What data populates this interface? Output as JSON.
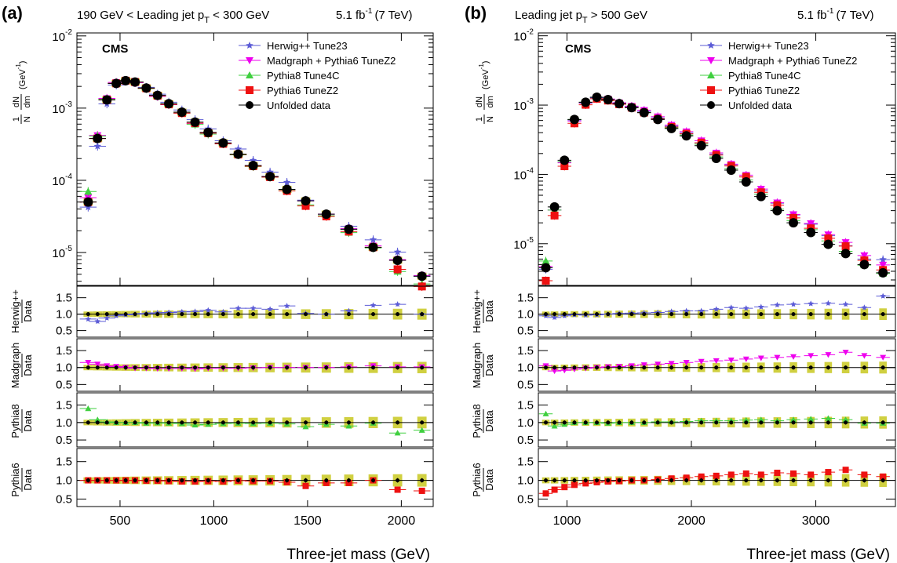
{
  "colors": {
    "herwig": "#5b5bd6",
    "madgraph": "#ee00ee",
    "pythia8": "#3fcf3f",
    "pythia6": "#ee1111",
    "data": "#000000",
    "band": "#c8c820"
  },
  "series_styles": [
    {
      "key": "herwig",
      "marker": "star"
    },
    {
      "key": "madgraph",
      "marker": "tri-down"
    },
    {
      "key": "pythia8",
      "marker": "tri-up"
    },
    {
      "key": "pythia6",
      "marker": "square"
    },
    {
      "key": "data",
      "marker": "circle"
    }
  ],
  "legend_labels": [
    "Herwig++ Tune23",
    "Madgraph + Pythia6 TuneZ2",
    "Pythia8 Tune4C",
    "Pythia6 TuneZ2",
    "Unfolded data"
  ],
  "cms_label": "CMS",
  "lumi_prefix": "5.1 fb",
  "lumi_exp": "-1",
  "lumi_energy": "(7 TeV)",
  "ylabel": {
    "num": "1",
    "den": "N",
    "dnum": "dN",
    "dden": "dm",
    "unit": "(GeV",
    "unitexp": "-1",
    "close": ")"
  },
  "ratio_labels": [
    {
      "top": "Herwig++",
      "bottom": "Data"
    },
    {
      "top": "Madgraph",
      "bottom": "Data"
    },
    {
      "top": "Pythia8",
      "bottom": "Data"
    },
    {
      "top": "Pythia6",
      "bottom": "Data"
    }
  ],
  "ratio_ticks": [
    "1.5",
    "1.0",
    "0.5"
  ],
  "xlabel": "Three-jet mass (GeV)",
  "chart_data": [
    {
      "type": "scatter",
      "panel": "(a)",
      "header": {
        "pre": "190 GeV < Leading jet p",
        "sub": "T",
        "post": " < 300 GeV"
      },
      "log_y": true,
      "xlim": [
        270,
        2170
      ],
      "ylim": [
        3.5e-06,
        0.011
      ],
      "x_ticks": [
        500,
        1000,
        1500,
        2000
      ],
      "y_ticks": [
        {
          "base": "10",
          "exp": "-2",
          "v": 0.01
        },
        {
          "base": "10",
          "exp": "-3",
          "v": 0.001
        },
        {
          "base": "10",
          "exp": "-4",
          "v": 0.0001
        },
        {
          "base": "10",
          "exp": "-5",
          "v": 1e-05
        }
      ],
      "bin_halfwidth": 45,
      "data": {
        "x": [
          330,
          380,
          430,
          480,
          530,
          580,
          640,
          700,
          760,
          830,
          900,
          970,
          1050,
          1130,
          1210,
          1300,
          1390,
          1490,
          1600,
          1720,
          1850,
          1980,
          2110
        ],
        "y": [
          5e-05,
          0.00038,
          0.0013,
          0.0022,
          0.0024,
          0.0023,
          0.0019,
          0.0015,
          0.00115,
          0.00088,
          0.00064,
          0.00046,
          0.00033,
          0.00023,
          0.00016,
          0.000113,
          7.5e-05,
          5.2e-05,
          3.4e-05,
          2.1e-05,
          1.18e-05,
          7.8e-06,
          4.7e-06
        ]
      },
      "ratios": {
        "herwig": [
          0.85,
          0.78,
          0.88,
          0.95,
          0.98,
          1.0,
          1.02,
          1.04,
          1.05,
          1.07,
          1.08,
          1.12,
          1.07,
          1.18,
          1.18,
          1.15,
          1.25,
          1.02,
          1.0,
          1.1,
          1.27,
          1.3,
          1.0
        ],
        "madgraph": [
          1.15,
          1.1,
          1.05,
          1.03,
          1.0,
          0.98,
          0.98,
          0.97,
          0.97,
          0.97,
          0.96,
          0.98,
          0.98,
          0.98,
          0.99,
          1.0,
          1.0,
          1.0,
          1.0,
          1.02,
          1.05,
          1.02,
          1.02
        ],
        "pythia8": [
          1.4,
          1.08,
          1.02,
          1.0,
          1.0,
          1.0,
          0.98,
          0.99,
          0.98,
          0.97,
          0.93,
          0.95,
          0.97,
          0.98,
          0.97,
          0.98,
          0.96,
          0.88,
          0.95,
          0.9,
          0.98,
          0.7,
          0.78
        ],
        "pythia6": [
          1.0,
          1.0,
          1.0,
          1.0,
          1.0,
          1.0,
          0.99,
          0.99,
          0.98,
          0.97,
          0.97,
          0.98,
          0.97,
          0.99,
          0.98,
          0.98,
          0.95,
          0.85,
          0.93,
          0.93,
          1.0,
          0.75,
          0.72
        ]
      }
    },
    {
      "type": "scatter",
      "panel": "(b)",
      "header": {
        "pre": "Leading jet p",
        "sub": "T",
        "post": " > 500 GeV"
      },
      "log_y": true,
      "xlim": [
        770,
        3640
      ],
      "ylim": [
        2.5e-06,
        0.011
      ],
      "x_ticks": [
        1000,
        2000,
        3000
      ],
      "y_ticks": [
        {
          "base": "10",
          "exp": "-2",
          "v": 0.01
        },
        {
          "base": "10",
          "exp": "-3",
          "v": 0.001
        },
        {
          "base": "10",
          "exp": "-4",
          "v": 0.0001
        },
        {
          "base": "10",
          "exp": "-5",
          "v": 1e-05
        }
      ],
      "bin_halfwidth": 55,
      "data": {
        "x": [
          830,
          900,
          980,
          1060,
          1150,
          1240,
          1330,
          1420,
          1520,
          1620,
          1730,
          1840,
          1960,
          2080,
          2200,
          2320,
          2440,
          2560,
          2690,
          2820,
          2960,
          3100,
          3240,
          3390,
          3540
        ],
        "y": [
          4.5e-06,
          3.4e-05,
          0.00016,
          0.00062,
          0.0011,
          0.0013,
          0.0012,
          0.00105,
          0.00092,
          0.00078,
          0.00062,
          0.00046,
          0.00036,
          0.00026,
          0.00017,
          0.000115,
          7.8e-05,
          4.8e-05,
          3e-05,
          2e-05,
          1.45e-05,
          9.8e-06,
          7.2e-06,
          5e-06,
          3.8e-06
        ]
      },
      "ratios": {
        "herwig": [
          0.95,
          0.9,
          0.95,
          0.98,
          0.97,
          0.98,
          1.0,
          1.02,
          1.03,
          1.04,
          1.05,
          1.08,
          1.1,
          1.1,
          1.15,
          1.2,
          1.18,
          1.22,
          1.28,
          1.3,
          1.32,
          1.33,
          1.3,
          1.2,
          1.55
        ],
        "madgraph": [
          1.05,
          0.9,
          0.92,
          0.95,
          0.98,
          1.0,
          1.02,
          1.03,
          1.05,
          1.08,
          1.1,
          1.12,
          1.15,
          1.18,
          1.2,
          1.22,
          1.25,
          1.28,
          1.3,
          1.32,
          1.35,
          1.38,
          1.45,
          1.35,
          1.3
        ],
        "pythia8": [
          1.25,
          0.9,
          0.95,
          1.0,
          1.0,
          1.0,
          0.98,
          1.0,
          1.0,
          1.0,
          1.02,
          1.02,
          1.03,
          1.05,
          1.05,
          1.05,
          1.07,
          1.08,
          1.05,
          1.08,
          1.1,
          1.12,
          1.08,
          0.98,
          0.98
        ],
        "pythia6": [
          0.65,
          0.75,
          0.82,
          0.88,
          0.92,
          0.95,
          0.97,
          0.98,
          1.0,
          1.0,
          1.02,
          1.05,
          1.07,
          1.1,
          1.12,
          1.15,
          1.18,
          1.15,
          1.2,
          1.18,
          1.15,
          1.22,
          1.28,
          1.15,
          1.1
        ]
      }
    }
  ]
}
